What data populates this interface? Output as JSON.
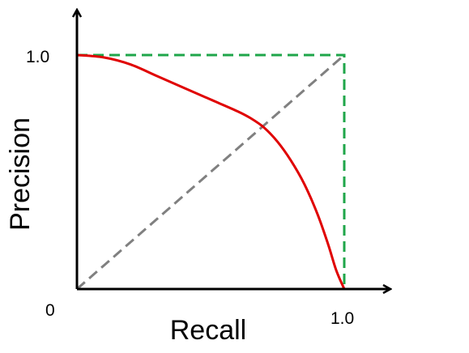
{
  "chart_data": {
    "type": "line",
    "title": "",
    "xlabel": "Recall",
    "ylabel": "Precision",
    "xlim": [
      0,
      1
    ],
    "ylim": [
      0,
      1
    ],
    "grid": false,
    "legend": "none",
    "origin_label": "0",
    "x_ticks": [
      {
        "value": 1.0,
        "label": "1.0"
      }
    ],
    "y_ticks": [
      {
        "value": 1.0,
        "label": "1.0"
      }
    ],
    "series": [
      {
        "color": "#e00000",
        "style": "solid",
        "points": [
          [
            0.0,
            1.0
          ],
          [
            0.1,
            0.99
          ],
          [
            0.2,
            0.96
          ],
          [
            0.3,
            0.91
          ],
          [
            0.4,
            0.86
          ],
          [
            0.5,
            0.81
          ],
          [
            0.6,
            0.76
          ],
          [
            0.65,
            0.73
          ],
          [
            0.7,
            0.69
          ],
          [
            0.75,
            0.63
          ],
          [
            0.8,
            0.55
          ],
          [
            0.85,
            0.45
          ],
          [
            0.9,
            0.32
          ],
          [
            0.94,
            0.19
          ],
          [
            0.97,
            0.08
          ],
          [
            1.0,
            0.0
          ]
        ]
      },
      {
        "color": "#1fa64a",
        "style": "dashed",
        "points": [
          [
            0.0,
            1.0
          ],
          [
            1.0,
            1.0
          ],
          [
            1.0,
            0.0
          ]
        ]
      },
      {
        "color": "#808080",
        "style": "dashed",
        "points": [
          [
            0.0,
            0.0
          ],
          [
            1.0,
            1.0
          ]
        ]
      }
    ]
  }
}
